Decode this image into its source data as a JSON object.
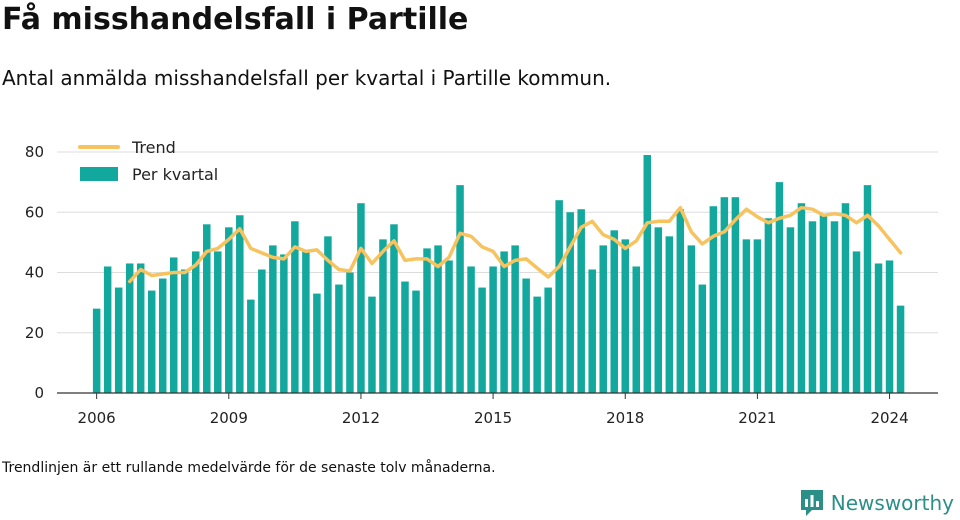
{
  "title": "Få misshandelsfall i Partille",
  "subtitle": "Antal anmälda misshandelsfall per kvartal i Partille kommun.",
  "footnote": "Trendlinjen är ett rullande medelvärde för de senaste tolv månaderna.",
  "brand": {
    "name": "Newsworthy",
    "icon": "newsworthy-logo-icon"
  },
  "colors": {
    "bar": "#13a89e",
    "trend": "#f7c35f",
    "grid": "#dddddd",
    "axis": "#333333"
  },
  "chart_data": {
    "type": "bar",
    "x_start": 2006,
    "x_step_years": 0.25,
    "xlim": [
      2005.1,
      2025.1
    ],
    "xticks": [
      2006,
      2009,
      2012,
      2015,
      2018,
      2021,
      2024
    ],
    "ylim": [
      0,
      80
    ],
    "yticks": [
      0,
      20,
      40,
      60,
      80
    ],
    "grid": true,
    "legend_position": "top-left",
    "series": [
      {
        "name": "Per kvartal",
        "type": "bar",
        "values": [
          28,
          42,
          35,
          43,
          43,
          34,
          38,
          45,
          41,
          47,
          56,
          47,
          55,
          59,
          31,
          41,
          49,
          46,
          57,
          47,
          33,
          52,
          36,
          40,
          63,
          32,
          51,
          56,
          37,
          34,
          48,
          49,
          44,
          69,
          42,
          35,
          42,
          47,
          49,
          38,
          32,
          35,
          64,
          60,
          61,
          41,
          49,
          54,
          51,
          42,
          79,
          55,
          52,
          61,
          49,
          36,
          62,
          65,
          65,
          51,
          51,
          58,
          70,
          55,
          63,
          57,
          59,
          57,
          63,
          47,
          69,
          43,
          44,
          29
        ]
      },
      {
        "name": "Trend",
        "type": "line",
        "values": [
          null,
          null,
          null,
          37,
          41,
          39,
          39.5,
          40,
          40,
          42.5,
          47,
          48,
          51,
          54.5,
          48,
          46.5,
          45,
          44.5,
          48.5,
          47,
          47.5,
          44,
          41,
          40.5,
          48,
          43,
          47,
          50.5,
          44,
          44.5,
          44.5,
          42,
          45,
          53,
          52,
          48.5,
          47,
          42,
          44,
          44.5,
          41.5,
          38.5,
          42,
          48.5,
          55,
          57,
          52.5,
          51,
          48,
          50.5,
          56.5,
          57,
          57,
          61.5,
          53.5,
          49.5,
          52,
          53.5,
          57.5,
          61,
          58.5,
          56.5,
          58,
          59,
          61.5,
          61,
          59,
          59.5,
          59,
          56.5,
          59,
          55.5,
          51,
          46.5
        ]
      }
    ]
  }
}
